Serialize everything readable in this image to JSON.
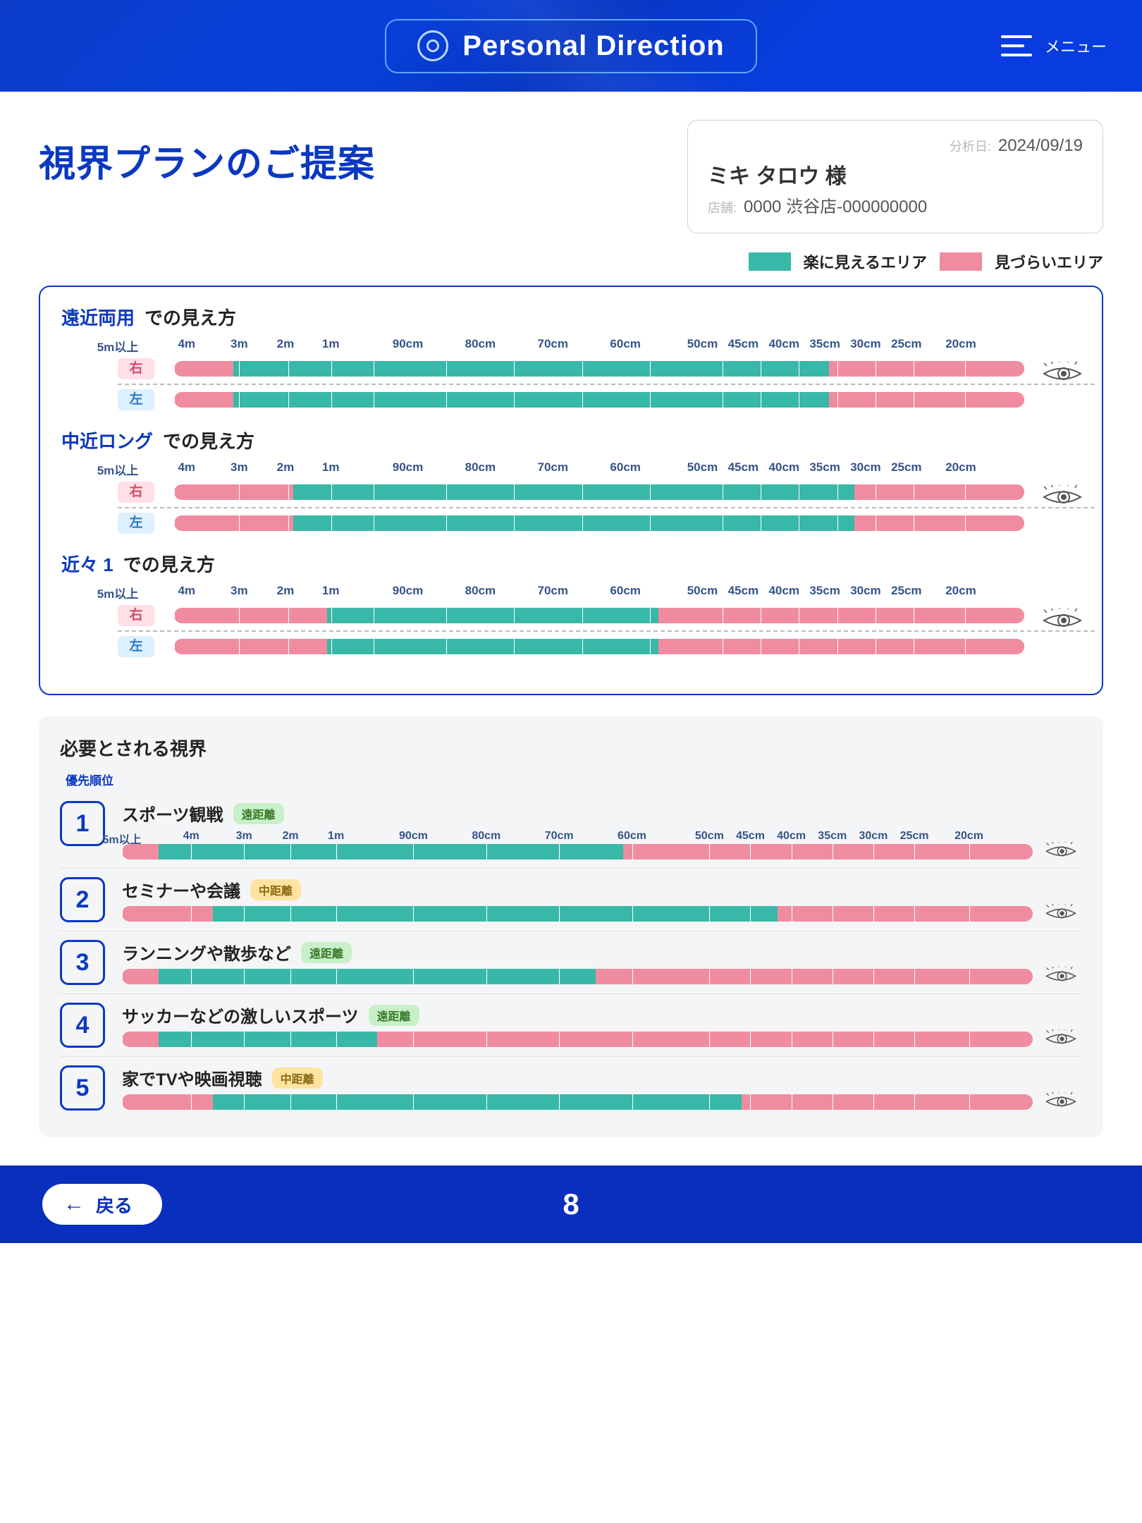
{
  "colors": {
    "teal": "#38b8a8",
    "pink": "#f08ca0",
    "blue": "#0a38c0"
  },
  "header": {
    "brand": "Personal Direction",
    "menu": "メニュー"
  },
  "page_title": "視界プランのご提案",
  "info": {
    "date_label": "分析日:",
    "date": "2024/09/19",
    "name": "ミキ タロウ 様",
    "store_label": "店舗:",
    "store": "0000 渋谷店-000000000"
  },
  "legend": {
    "easy": "楽に見えるエリア",
    "hard": "見づらいエリア"
  },
  "axis": {
    "labels": [
      "5m以上",
      "4m",
      "3m",
      "2m",
      "1m",
      "90cm",
      "80cm",
      "70cm",
      "60cm",
      "50cm",
      "45cm",
      "40cm",
      "35cm",
      "30cm",
      "25cm",
      "20cm"
    ],
    "positions": [
      0,
      7.6,
      13.4,
      18.5,
      23.5,
      32,
      40,
      48,
      56,
      64.5,
      69,
      73.5,
      78,
      82.5,
      87,
      93
    ]
  },
  "vision_suffix": "での見え方",
  "eye_labels": {
    "right": "右",
    "left": "左"
  },
  "lenses": [
    {
      "name": "遠近両用",
      "right": {
        "teal": [
          7,
          77
        ]
      },
      "left": {
        "teal": [
          7,
          77
        ]
      }
    },
    {
      "name": "中近ロング",
      "right": {
        "teal": [
          14,
          80
        ]
      },
      "left": {
        "teal": [
          14,
          80
        ]
      }
    },
    {
      "name": "近々 1",
      "right": {
        "teal": [
          18,
          57
        ]
      },
      "left": {
        "teal": [
          18,
          57
        ]
      }
    }
  ],
  "needs": {
    "title": "必要とされる視界",
    "priority_label": "優先順位",
    "items": [
      {
        "rank": "1",
        "name": "スポーツ観戦",
        "tag": "遠距離",
        "tag_type": "far",
        "teal": [
          4,
          55
        ]
      },
      {
        "rank": "2",
        "name": "セミナーや会議",
        "tag": "中距離",
        "tag_type": "mid",
        "teal": [
          10,
          72
        ]
      },
      {
        "rank": "3",
        "name": "ランニングや散歩など",
        "tag": "遠距離",
        "tag_type": "far",
        "teal": [
          4,
          52
        ]
      },
      {
        "rank": "4",
        "name": "サッカーなどの激しいスポーツ",
        "tag": "遠距離",
        "tag_type": "far",
        "teal": [
          4,
          28
        ]
      },
      {
        "rank": "5",
        "name": "家でTVや映画視聴",
        "tag": "中距離",
        "tag_type": "mid",
        "teal": [
          10,
          68
        ]
      }
    ]
  },
  "footer": {
    "back": "戻る",
    "page": "8"
  }
}
